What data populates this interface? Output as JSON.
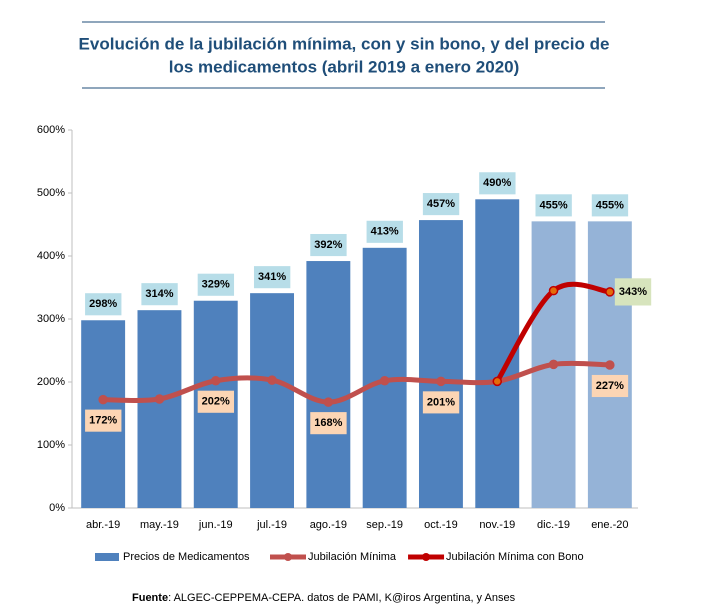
{
  "chart_data": {
    "type": "bar-line",
    "title": [
      "Evolución de la jubilación mínima, con y sin bono, y del precio de",
      "los medicamentos (abril 2019 a enero 2020)"
    ],
    "categories": [
      "abr.-19",
      "may.-19",
      "jun.-19",
      "jul.-19",
      "ago.-19",
      "sep.-19",
      "oct.-19",
      "nov.-19",
      "dic.-19",
      "ene.-20"
    ],
    "ylim": [
      0,
      600
    ],
    "yticks": [
      {
        "value": 0,
        "label": "0%"
      },
      {
        "value": 100,
        "label": "100%"
      },
      {
        "value": 200,
        "label": "200%"
      },
      {
        "value": 300,
        "label": "300%"
      },
      {
        "value": 400,
        "label": "400%"
      },
      {
        "value": 500,
        "label": "500%"
      },
      {
        "value": 600,
        "label": "600%"
      }
    ],
    "series": [
      {
        "name": "Precios de Medicamentos",
        "type": "bar",
        "color": "#4f81bd",
        "colors": [
          "#4f81bd",
          "#4f81bd",
          "#4f81bd",
          "#4f81bd",
          "#4f81bd",
          "#4f81bd",
          "#4f81bd",
          "#4f81bd",
          "#95b3d7",
          "#95b3d7"
        ],
        "values": [
          298,
          314,
          329,
          341,
          392,
          413,
          457,
          490,
          455,
          455
        ],
        "value_labels": [
          "298%",
          "314%",
          "329%",
          "341%",
          "392%",
          "413%",
          "457%",
          "490%",
          "455%",
          "455%"
        ]
      },
      {
        "name": "Jubilación Mínima",
        "type": "line",
        "color": "#c0504d",
        "values": [
          172,
          173,
          202,
          203,
          168,
          202,
          201,
          201,
          228,
          227
        ],
        "value_labels": [
          "172%",
          null,
          "202%",
          null,
          "168%",
          null,
          "201%",
          null,
          null,
          "227%"
        ]
      },
      {
        "name": "Jubilación Mínima con Bono",
        "type": "line",
        "color": "#c00000",
        "values": [
          null,
          null,
          null,
          null,
          null,
          null,
          null,
          201,
          345,
          343
        ],
        "value_labels": [
          null,
          null,
          null,
          null,
          null,
          null,
          null,
          null,
          null,
          "343%"
        ]
      }
    ],
    "source_label": "Fuente",
    "source_text": ": ALGEC-CEPPEMA-CEPA. datos de PAMI, K@iros Argentina, y Anses"
  }
}
